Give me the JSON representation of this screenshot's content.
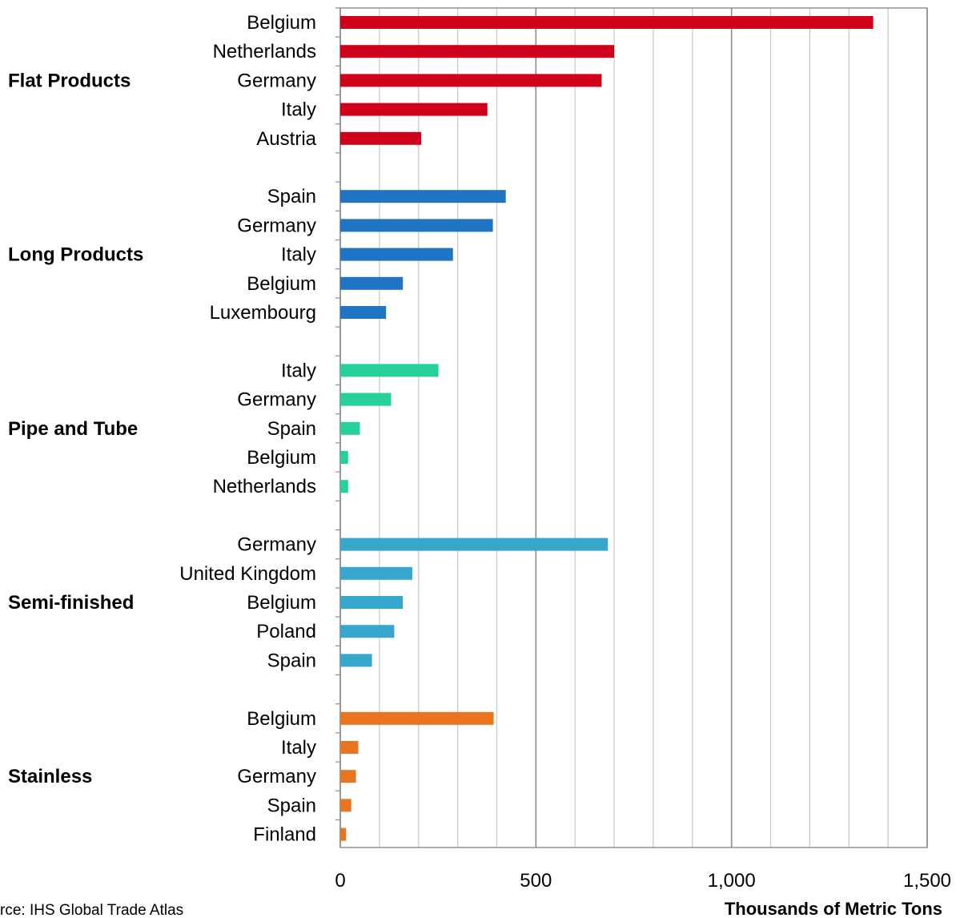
{
  "chart_data": {
    "type": "bar",
    "orientation": "horizontal",
    "xlabel": "Thousands of Metric Tons",
    "xlim": [
      0,
      1500
    ],
    "xticks": [
      0,
      500,
      1000,
      1500
    ],
    "xtick_labels": [
      "0",
      "500",
      "1,000",
      "1,500"
    ],
    "grid": true,
    "source": "rce: IHS Global Trade Atlas",
    "groups": [
      {
        "name": "Flat Products",
        "color": "#d0021b",
        "categories": [
          "Belgium",
          "Netherlands",
          "Germany",
          "Italy",
          "Austria"
        ],
        "values": [
          1362,
          700,
          668,
          376,
          207
        ]
      },
      {
        "name": "Long Products",
        "color": "#1f74c4",
        "categories": [
          "Spain",
          "Germany",
          "Italy",
          "Belgium",
          "Luxembourg"
        ],
        "values": [
          423,
          390,
          288,
          160,
          117
        ]
      },
      {
        "name": "Pipe and Tube",
        "color": "#26d09a",
        "categories": [
          "Italy",
          "Germany",
          "Spain",
          "Belgium",
          "Netherlands"
        ],
        "values": [
          251,
          130,
          50,
          20,
          20
        ]
      },
      {
        "name": "Semi-finished",
        "color": "#38a6cc",
        "categories": [
          "Germany",
          "United Kingdom",
          "Belgium",
          "Poland",
          "Spain"
        ],
        "values": [
          684,
          184,
          160,
          138,
          81
        ]
      },
      {
        "name": "Stainless",
        "color": "#e87520",
        "categories": [
          "Belgium",
          "Italy",
          "Germany",
          "Spain",
          "Finland"
        ],
        "values": [
          392,
          46,
          40,
          28,
          15
        ]
      }
    ]
  }
}
